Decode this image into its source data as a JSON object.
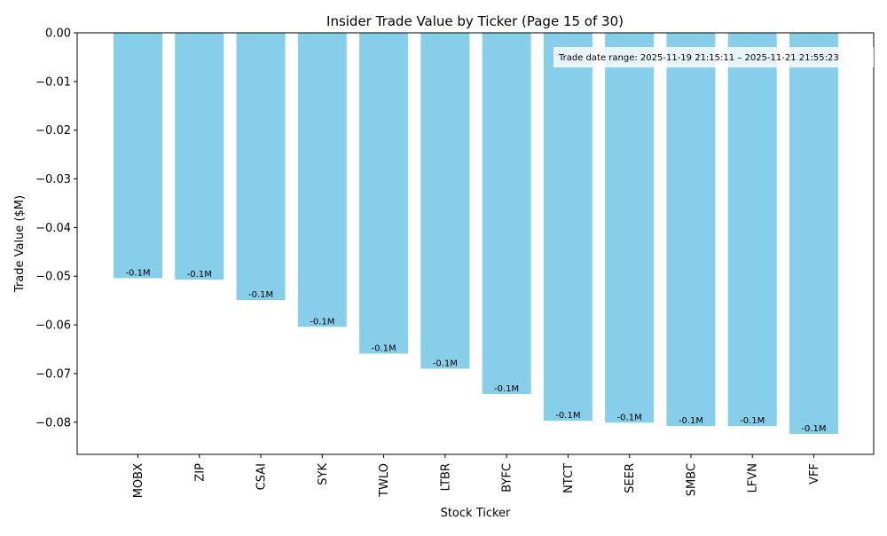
{
  "chart_data": {
    "type": "bar",
    "title": "Insider Trade Value by Ticker (Page 15 of 30)",
    "xlabel": "Stock Ticker",
    "ylabel": "Trade Value ($M)",
    "categories": [
      "MOBX",
      "ZIP",
      "CSAI",
      "SYK",
      "TWLO",
      "LTBR",
      "BYFC",
      "NTCT",
      "SEER",
      "SMBC",
      "LFVN",
      "VFF"
    ],
    "values": [
      -0.0504,
      -0.0507,
      -0.0549,
      -0.0604,
      -0.0659,
      -0.069,
      -0.0742,
      -0.0797,
      -0.0801,
      -0.0808,
      -0.0808,
      -0.0824
    ],
    "data_labels": [
      "-0.1M",
      "-0.1M",
      "-0.1M",
      "-0.1M",
      "-0.1M",
      "-0.1M",
      "-0.1M",
      "-0.1M",
      "-0.1M",
      "-0.1M",
      "-0.1M",
      "-0.1M"
    ],
    "ylim": [
      -0.0866,
      0.0
    ],
    "yticks": [
      0.0,
      -0.01,
      -0.02,
      -0.03,
      -0.04,
      -0.05,
      -0.06,
      -0.07,
      -0.08
    ],
    "ytick_labels": [
      "0.00",
      "−0.01",
      "−0.02",
      "−0.03",
      "−0.04",
      "−0.05",
      "−0.06",
      "−0.07",
      "−0.08"
    ],
    "annotation": "Trade date range: 2025-11-19 21:15:11 – 2025-11-21 21:55:23",
    "bar_color": "#87ceeb",
    "grid": false,
    "legend": "none"
  }
}
